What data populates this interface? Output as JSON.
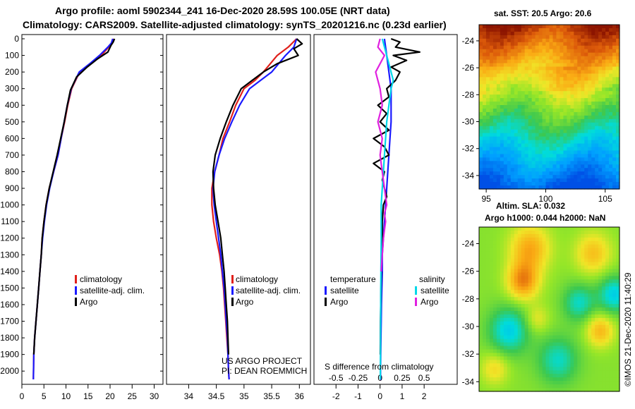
{
  "header": {
    "title_line1": "Argo profile: aoml 5902344_241 16-Dec-2020 28.59S 100.05E (NRT data)",
    "title_line2": "Climatology: CARS2009. Satellite-adjusted climatology: synTS_20201216.nc (0.23d earlier)"
  },
  "credits": {
    "project_line1": "US ARGO PROJECT",
    "project_line2": "PI: DEAN ROEMMICH",
    "watermark": "©IMOS 21-Dec-2020 11:40:29"
  },
  "colors": {
    "climatology": "#e0201b",
    "satellite": "#1a1aff",
    "argo": "#000000",
    "sat_salinity": "#00d8e8",
    "argo_salinity": "#e020e0"
  },
  "chart_data": [
    {
      "id": "temperature-profile",
      "type": "line",
      "title": "",
      "xlabel": "",
      "ylabel": "",
      "xlim": [
        0,
        32
      ],
      "ylim": [
        0,
        2050
      ],
      "x_ticks": [
        0,
        5,
        10,
        15,
        20,
        25,
        30
      ],
      "y_ticks": [
        0,
        100,
        200,
        300,
        400,
        500,
        600,
        700,
        800,
        900,
        1000,
        1100,
        1200,
        1300,
        1400,
        1500,
        1600,
        1700,
        1800,
        1900,
        2000
      ],
      "legend": [
        "climatology",
        "satellite-adj. clim.",
        "Argo"
      ],
      "series": [
        {
          "name": "climatology",
          "color_key": "climatology",
          "x": [
            20.8,
            20.5,
            19.7,
            18.0,
            15.6,
            13.1,
            11.3,
            10.4,
            9.7,
            8.9,
            8.2,
            7.2,
            6.2,
            5.5,
            5.0,
            4.6,
            4.4,
            4.1,
            3.8,
            3.5,
            3.2,
            2.9,
            2.7,
            2.6
          ],
          "y": [
            0,
            25,
            50,
            100,
            150,
            200,
            300,
            400,
            500,
            600,
            700,
            800,
            900,
            1000,
            1100,
            1200,
            1300,
            1400,
            1500,
            1600,
            1700,
            1800,
            1900,
            2050
          ]
        },
        {
          "name": "satellite-adj. clim.",
          "color_key": "satellite",
          "x": [
            20.6,
            20.3,
            19.5,
            17.6,
            15.4,
            13.0,
            11.2,
            10.3,
            9.6,
            8.9,
            8.2,
            7.2,
            6.3,
            5.6,
            5.1,
            4.7,
            4.4,
            4.1,
            3.8,
            3.5,
            3.2,
            2.9,
            2.7,
            2.6
          ],
          "y": [
            0,
            25,
            50,
            100,
            150,
            200,
            300,
            400,
            500,
            600,
            700,
            800,
            900,
            1000,
            1100,
            1200,
            1300,
            1400,
            1500,
            1600,
            1700,
            1800,
            1900,
            2050
          ]
        },
        {
          "name": "Argo",
          "color_key": "argo",
          "x": [
            21.0,
            20.7,
            20.2,
            19.5,
            17.2,
            14.8,
            12.4,
            11.0,
            10.3,
            9.6,
            8.8,
            8.0,
            7.1,
            6.2,
            5.5,
            5.0,
            4.6,
            4.4,
            4.1,
            3.8,
            3.5,
            3.2,
            2.9,
            2.7
          ],
          "y": [
            0,
            20,
            40,
            80,
            120,
            170,
            230,
            310,
            400,
            500,
            600,
            700,
            800,
            900,
            1000,
            1100,
            1200,
            1300,
            1400,
            1500,
            1600,
            1700,
            1800,
            1900
          ]
        }
      ]
    },
    {
      "id": "salinity-profile",
      "type": "line",
      "title": "",
      "xlabel": "",
      "ylabel": "",
      "xlim": [
        33.6,
        36.2
      ],
      "ylim": [
        0,
        2050
      ],
      "x_ticks": [
        34,
        34.5,
        35,
        35.5,
        36
      ],
      "legend": [
        "climatology",
        "satellite-adj. clim.",
        "Argo"
      ],
      "series": [
        {
          "name": "climatology",
          "color_key": "climatology",
          "x": [
            35.95,
            35.8,
            35.6,
            35.35,
            35.2,
            35.0,
            34.85,
            34.74,
            34.62,
            34.55,
            34.47,
            34.42,
            34.42,
            34.45,
            34.5,
            34.56,
            34.6,
            34.63,
            34.65,
            34.67,
            34.69,
            34.71,
            34.72,
            34.73
          ],
          "y": [
            0,
            50,
            100,
            200,
            250,
            300,
            400,
            500,
            600,
            700,
            800,
            900,
            1000,
            1100,
            1200,
            1300,
            1400,
            1500,
            1600,
            1700,
            1800,
            1900,
            2000,
            2050
          ]
        },
        {
          "name": "satellite-adj. clim.",
          "color_key": "satellite",
          "x": [
            35.95,
            35.9,
            35.75,
            35.5,
            35.3,
            35.1,
            34.92,
            34.78,
            34.65,
            34.55,
            34.47,
            34.44,
            34.46,
            34.5,
            34.54,
            34.58,
            34.61,
            34.64,
            34.66,
            34.68,
            34.7,
            34.71,
            34.72,
            34.73
          ],
          "y": [
            0,
            50,
            100,
            200,
            250,
            300,
            400,
            500,
            600,
            700,
            800,
            900,
            1000,
            1100,
            1200,
            1300,
            1400,
            1500,
            1600,
            1700,
            1800,
            1900,
            2000,
            2050
          ]
        },
        {
          "name": "Argo",
          "color_key": "argo",
          "x": [
            35.95,
            36.05,
            35.9,
            35.98,
            35.6,
            35.35,
            35.15,
            34.95,
            34.8,
            34.68,
            34.57,
            34.48,
            34.44,
            34.45,
            34.48,
            34.53,
            34.58,
            34.61,
            34.64,
            34.66,
            34.68,
            34.7,
            34.71,
            34.72
          ],
          "y": [
            0,
            30,
            60,
            100,
            150,
            200,
            250,
            300,
            400,
            500,
            600,
            700,
            800,
            900,
            1000,
            1100,
            1200,
            1300,
            1400,
            1500,
            1600,
            1700,
            1800,
            1900
          ]
        }
      ]
    },
    {
      "id": "difference-profile",
      "type": "line",
      "title": "S difference from climatology",
      "xlabel": "",
      "ylabel": "",
      "xlim": [
        -3,
        3.5
      ],
      "ylim": [
        0,
        2050
      ],
      "x_ticks_bottom": [
        -2,
        -1,
        0,
        1,
        2
      ],
      "x_ticks_top": [
        -0.5,
        -0.25,
        0,
        0.25,
        0.5
      ],
      "legend_temperature": [
        "satellite",
        "Argo"
      ],
      "legend_salinity": [
        "satellite",
        "Argo"
      ],
      "legend_titles": [
        "temperature",
        "salinity"
      ],
      "series": [
        {
          "name": "temperature satellite",
          "color_key": "satellite",
          "x": [
            0.2,
            0.3,
            0.4,
            0.5,
            0.5,
            0.5,
            0.45,
            0.4,
            0.35,
            0.3,
            0.25,
            0.2,
            0.15,
            0.1,
            0.1,
            0.08,
            0.06,
            0.05,
            0.04,
            0.03,
            0.02,
            0.02,
            0.01
          ],
          "y": [
            0,
            100,
            200,
            300,
            400,
            500,
            600,
            700,
            800,
            900,
            1000,
            1100,
            1200,
            1300,
            1400,
            1500,
            1600,
            1700,
            1800,
            1900,
            2000,
            2050,
            2050
          ]
        },
        {
          "name": "temperature Argo",
          "color_key": "argo",
          "x": [
            0.5,
            0.9,
            0.7,
            1.8,
            0.6,
            1.2,
            0.5,
            0.9,
            0.7,
            0.3,
            0.4,
            -0.1,
            0.3,
            0.0,
            0.4,
            -0.3,
            0.2,
            0.4,
            -0.3,
            0.2,
            0.1,
            0.2,
            0.3,
            0.15,
            0.1,
            0.1,
            0.05,
            0.02,
            0.01
          ],
          "y": [
            0,
            20,
            50,
            80,
            100,
            130,
            170,
            200,
            250,
            300,
            350,
            400,
            450,
            500,
            550,
            600,
            650,
            700,
            750,
            800,
            850,
            900,
            950,
            1000,
            1100,
            1200,
            1400,
            1700,
            1900
          ]
        },
        {
          "name": "salinity satellite",
          "color_key": "sat_salinity",
          "x": [
            0.1,
            0.3,
            0.6,
            0.5,
            0.4,
            0.3,
            0.25,
            0.2,
            0.15,
            0.1,
            0.05,
            0.05,
            0.05,
            0.04,
            0.03,
            0.02,
            0.02,
            0.01
          ],
          "y": [
            0,
            100,
            250,
            300,
            400,
            500,
            600,
            700,
            800,
            900,
            1000,
            1100,
            1200,
            1400,
            1600,
            1800,
            1900,
            2050
          ]
        },
        {
          "name": "salinity Argo",
          "color_key": "argo_salinity",
          "x": [
            0.0,
            -0.1,
            0.2,
            0.0,
            -0.2,
            0.0,
            0.1,
            -0.1,
            0.1,
            0.0,
            0.1,
            0.2,
            0.3,
            0.2,
            0.25,
            0.2,
            0.15,
            0.1,
            0.05
          ],
          "y": [
            0,
            50,
            100,
            150,
            200,
            300,
            400,
            500,
            600,
            700,
            800,
            900,
            1000,
            1050,
            1100,
            1150,
            1200,
            1300,
            1400
          ]
        }
      ]
    },
    {
      "id": "sst-map",
      "type": "heatmap",
      "title": "sat. SST: 20.5 Argo: 20.6",
      "x_ticks": [
        95,
        100,
        105
      ],
      "y_ticks": [
        -24,
        -26,
        -28,
        -30,
        -32,
        -34
      ],
      "xlim": [
        94.4,
        106.2
      ],
      "ylim": [
        -35,
        -22.8
      ]
    },
    {
      "id": "sla-map",
      "type": "heatmap",
      "title_line1": "Altim. SLA: 0.032",
      "title_line2": "Argo h1000: 0.044 h2000: NaN",
      "y_ticks": [
        -24,
        -26,
        -28,
        -30,
        -32,
        -34
      ],
      "ylim": [
        -34.7,
        -22.8
      ]
    }
  ]
}
